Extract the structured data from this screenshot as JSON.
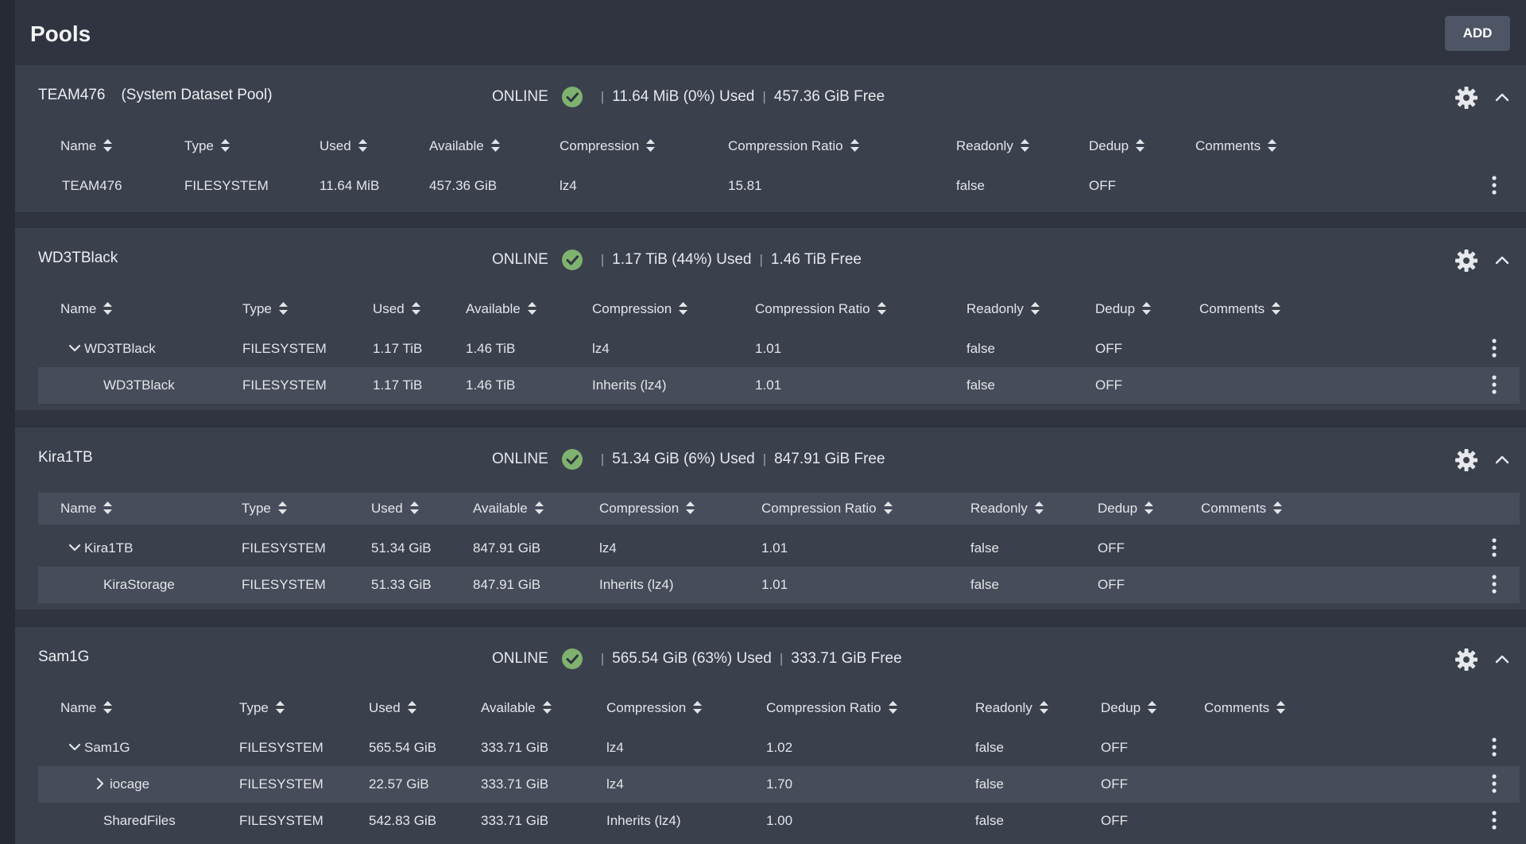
{
  "page": {
    "title": "Pools",
    "add_label": "ADD"
  },
  "colors": {
    "status_ok": "#7fb26e",
    "background": "#2f3440",
    "card": "#3b404d",
    "alt_row": "#464c59"
  },
  "columns": [
    "Name",
    "Type",
    "Used",
    "Available",
    "Compression",
    "Compression Ratio",
    "Readonly",
    "Dedup",
    "Comments"
  ],
  "pools": [
    {
      "name": "TEAM476",
      "label": "(System Dataset Pool)",
      "status": "ONLINE",
      "used": "11.64 MiB (0%) Used",
      "free": "457.36 GiB Free",
      "rows": [
        {
          "name": "TEAM476",
          "type": "FILESYSTEM",
          "used": "11.64 MiB",
          "available": "457.36 GiB",
          "compression": "lz4",
          "ratio": "15.81",
          "readonly": "false",
          "dedup": "OFF",
          "comments": ""
        }
      ]
    },
    {
      "name": "WD3TBlack",
      "label": "",
      "status": "ONLINE",
      "used": "1.17 TiB (44%) Used",
      "free": "1.46 TiB Free",
      "rows": [
        {
          "name": "WD3TBlack",
          "type": "FILESYSTEM",
          "used": "1.17 TiB",
          "available": "1.46 TiB",
          "compression": "lz4",
          "ratio": "1.01",
          "readonly": "false",
          "dedup": "OFF",
          "comments": ""
        },
        {
          "name": "WD3TBlack",
          "type": "FILESYSTEM",
          "used": "1.17 TiB",
          "available": "1.46 TiB",
          "compression": "Inherits (lz4)",
          "ratio": "1.01",
          "readonly": "false",
          "dedup": "OFF",
          "comments": ""
        }
      ]
    },
    {
      "name": "Kira1TB",
      "label": "",
      "status": "ONLINE",
      "used": "51.34 GiB (6%) Used",
      "free": "847.91 GiB Free",
      "rows": [
        {
          "name": "Kira1TB",
          "type": "FILESYSTEM",
          "used": "51.34 GiB",
          "available": "847.91 GiB",
          "compression": "lz4",
          "ratio": "1.01",
          "readonly": "false",
          "dedup": "OFF",
          "comments": ""
        },
        {
          "name": "KiraStorage",
          "type": "FILESYSTEM",
          "used": "51.33 GiB",
          "available": "847.91 GiB",
          "compression": "Inherits (lz4)",
          "ratio": "1.01",
          "readonly": "false",
          "dedup": "OFF",
          "comments": ""
        }
      ]
    },
    {
      "name": "Sam1G",
      "label": "",
      "status": "ONLINE",
      "used": "565.54 GiB (63%) Used",
      "free": "333.71 GiB Free",
      "rows": [
        {
          "name": "Sam1G",
          "type": "FILESYSTEM",
          "used": "565.54 GiB",
          "available": "333.71 GiB",
          "compression": "lz4",
          "ratio": "1.02",
          "readonly": "false",
          "dedup": "OFF",
          "comments": ""
        },
        {
          "name": "iocage",
          "type": "FILESYSTEM",
          "used": "22.57 GiB",
          "available": "333.71 GiB",
          "compression": "lz4",
          "ratio": "1.70",
          "readonly": "false",
          "dedup": "OFF",
          "comments": ""
        },
        {
          "name": "SharedFiles",
          "type": "FILESYSTEM",
          "used": "542.83 GiB",
          "available": "333.71 GiB",
          "compression": "Inherits (lz4)",
          "ratio": "1.00",
          "readonly": "false",
          "dedup": "OFF",
          "comments": ""
        }
      ]
    }
  ]
}
